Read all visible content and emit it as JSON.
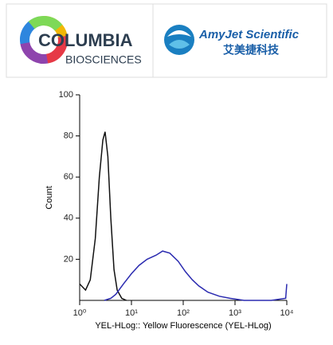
{
  "logos": {
    "left": {
      "name": "COLUMBIA",
      "sub": "BIOSCIENCES"
    },
    "right": {
      "name": "AmyJet Scientific",
      "sub": "艾美捷科技"
    }
  },
  "chart_data": {
    "type": "line",
    "xlabel": "YEL-HLog:: Yellow Fluorescence (YEL-HLog)",
    "ylabel": "Count",
    "xscale": "log",
    "xlim": [
      1,
      10000
    ],
    "ylim": [
      0,
      100
    ],
    "xticks": [
      {
        "value": 1,
        "label": "10⁰"
      },
      {
        "value": 10,
        "label": "10¹"
      },
      {
        "value": 100,
        "label": "10²"
      },
      {
        "value": 1000,
        "label": "10³"
      },
      {
        "value": 10000,
        "label": "10⁴"
      }
    ],
    "yticks": [
      20,
      40,
      60,
      80,
      100
    ],
    "series": [
      {
        "color": "#111111",
        "x": [
          1.0,
          1.3,
          1.6,
          2.0,
          2.4,
          2.8,
          3.1,
          3.5,
          4.0,
          4.6,
          5.3,
          6.5,
          8
        ],
        "values": [
          8,
          5,
          10,
          30,
          60,
          78,
          82,
          70,
          40,
          15,
          5,
          1,
          0
        ]
      },
      {
        "color": "#2b2bb0",
        "x": [
          3,
          4,
          5,
          7,
          10,
          14,
          20,
          30,
          40,
          55,
          80,
          110,
          150,
          200,
          300,
          500,
          800,
          1500,
          5000,
          9500,
          10000
        ],
        "values": [
          0,
          1,
          3,
          8,
          13,
          17,
          20,
          22,
          24,
          23,
          19,
          14,
          10,
          7,
          4,
          2,
          1,
          0,
          0,
          1,
          8
        ]
      }
    ]
  }
}
